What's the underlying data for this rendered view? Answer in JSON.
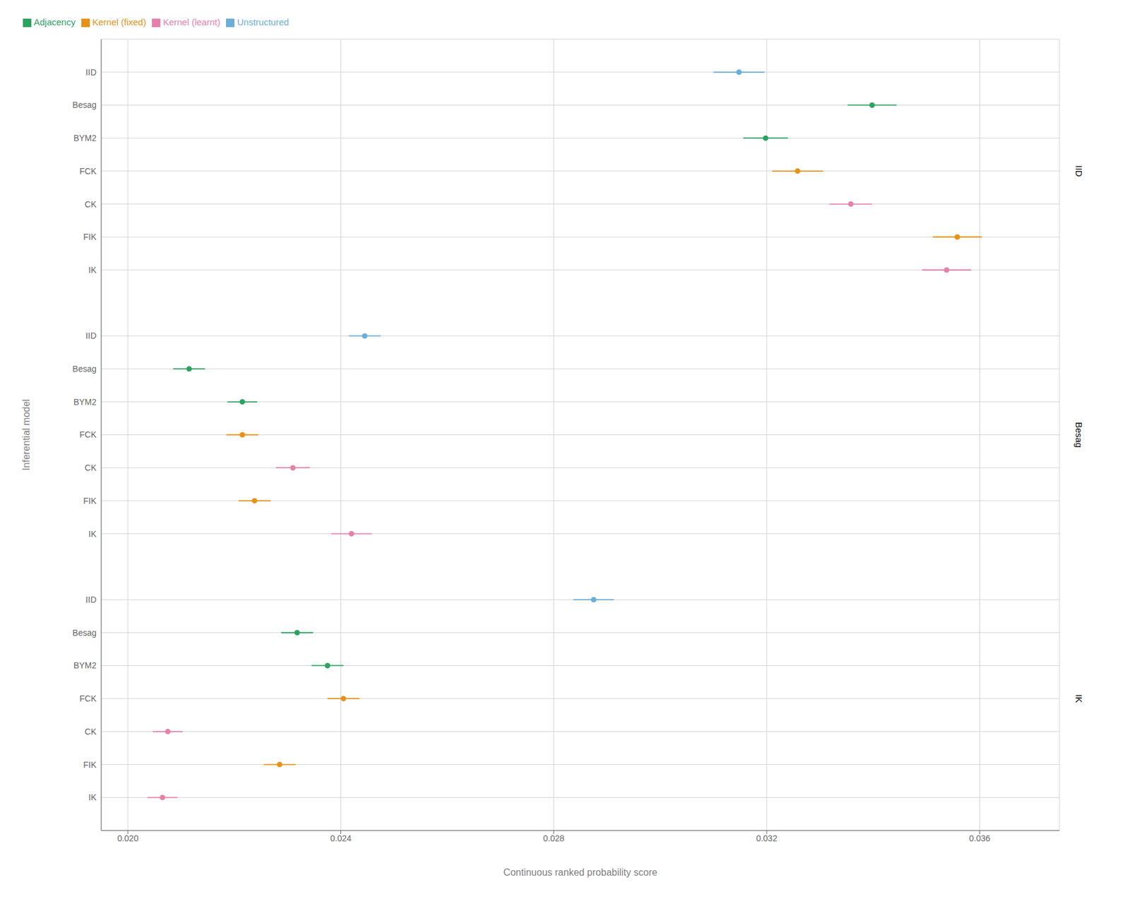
{
  "chart_data": {
    "type": "scatter",
    "xlabel": "Continuous ranked probability score",
    "ylabel": "Inferential model",
    "categories": [
      "IID",
      "Besag",
      "BYM2",
      "FCK",
      "CK",
      "FIK",
      "IK",
      null,
      "IID",
      "Besag",
      "BYM2",
      "FCK",
      "CK",
      "FIK",
      "IK",
      null,
      "IID",
      "Besag",
      "BYM2",
      "FCK",
      "CK",
      "FIK",
      "IK"
    ],
    "annotations": [
      "IID",
      "Besag",
      "IK"
    ],
    "series": [
      {
        "name": "Unstructured",
        "color": "#6BAED6",
        "values": [
          0.03148,
          null,
          null,
          null,
          null,
          null,
          null,
          null,
          0.02445,
          null,
          null,
          null,
          null,
          null,
          null,
          null,
          0.02875,
          null,
          null,
          null,
          null,
          null,
          null
        ],
        "errors": [
          0.00048,
          null,
          null,
          null,
          null,
          null,
          null,
          null,
          0.0003,
          null,
          null,
          null,
          null,
          null,
          null,
          null,
          0.00038,
          null,
          null,
          null,
          null,
          null,
          null
        ]
      },
      {
        "name": "Adjacency",
        "color": "#2CA25F",
        "values": [
          null,
          0.03398,
          0.03198,
          null,
          null,
          null,
          null,
          null,
          null,
          0.02115,
          0.02215,
          null,
          null,
          null,
          null,
          null,
          null,
          0.02318,
          0.02375,
          null,
          null,
          null,
          null
        ],
        "errors": [
          null,
          0.00046,
          0.00042,
          null,
          null,
          null,
          null,
          null,
          null,
          0.0003,
          0.00028,
          null,
          null,
          null,
          null,
          null,
          null,
          0.0003,
          0.0003,
          null,
          null,
          null,
          null
        ]
      },
      {
        "name": "Kernel (fixed)",
        "color": "#E6921A",
        "values": [
          null,
          null,
          null,
          0.03258,
          null,
          0.03558,
          null,
          null,
          null,
          null,
          null,
          0.02215,
          null,
          0.02238,
          null,
          null,
          null,
          null,
          null,
          0.02405,
          null,
          0.02285,
          null
        ],
        "errors": [
          null,
          null,
          null,
          0.00048,
          null,
          0.00046,
          null,
          null,
          null,
          null,
          null,
          0.0003,
          null,
          0.0003,
          null,
          null,
          null,
          null,
          null,
          0.0003,
          null,
          0.0003,
          null
        ]
      },
      {
        "name": "Kernel (learnt)",
        "color": "#E87FAA",
        "values": [
          null,
          null,
          null,
          null,
          0.03358,
          null,
          0.03538,
          null,
          null,
          null,
          null,
          null,
          0.0231,
          null,
          0.0242,
          null,
          null,
          null,
          null,
          null,
          0.02075,
          null,
          0.02065
        ],
        "errors": [
          null,
          null,
          null,
          null,
          0.0004,
          null,
          0.00046,
          null,
          null,
          null,
          null,
          null,
          0.00032,
          null,
          0.00038,
          null,
          null,
          null,
          null,
          null,
          0.00028,
          null,
          0.00028
        ]
      }
    ],
    "xlim": [
      0.0195,
      0.0375
    ],
    "xticks": [
      {
        "value": 0.02,
        "label": "0.020"
      },
      {
        "value": 0.024,
        "label": "0.024"
      },
      {
        "value": 0.028,
        "label": "0.028"
      },
      {
        "value": 0.032,
        "label": "0.032"
      },
      {
        "value": 0.036,
        "label": "0.036"
      }
    ],
    "grid": true,
    "legend": "upper left"
  }
}
